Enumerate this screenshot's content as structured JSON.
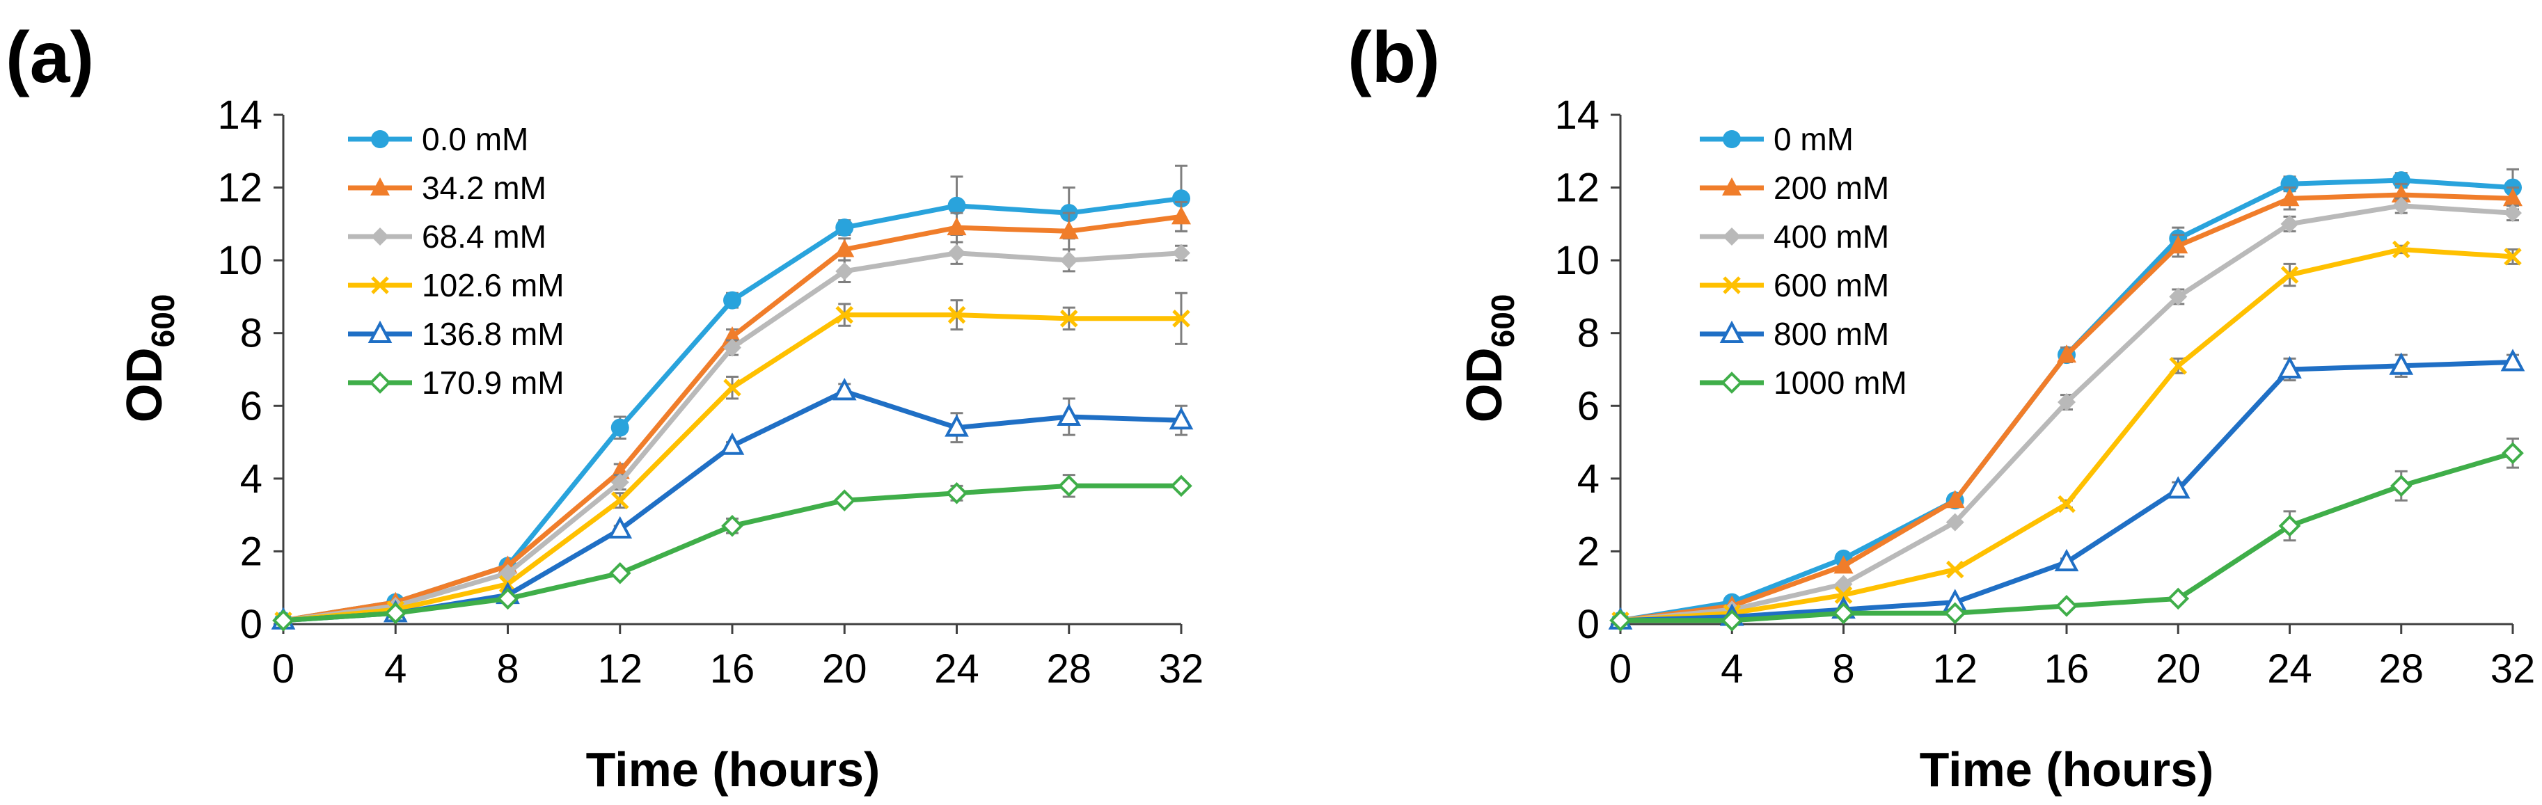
{
  "chart_data": [
    {
      "type": "line",
      "panel_label": "(a)",
      "xlabel": "Time (hours)",
      "ylabel_main": "OD",
      "ylabel_sub": "600",
      "x": [
        0,
        4,
        8,
        12,
        16,
        20,
        24,
        28,
        32
      ],
      "xlim": [
        0,
        32
      ],
      "ylim": [
        0,
        14
      ],
      "xticks": [
        "0",
        "4",
        "8",
        "12",
        "16",
        "20",
        "24",
        "28",
        "32"
      ],
      "yticks": [
        "0",
        "2",
        "4",
        "6",
        "8",
        "10",
        "12",
        "14"
      ],
      "legend_position": "top-left",
      "series": [
        {
          "name": "0.0 mM",
          "color": "#29a3dc",
          "marker": "circle",
          "values": [
            0.1,
            0.6,
            1.6,
            5.4,
            8.9,
            10.9,
            11.5,
            11.3,
            11.7
          ],
          "errors": [
            0,
            0,
            0.1,
            0.3,
            0.2,
            0.2,
            0.8,
            0.7,
            0.9
          ]
        },
        {
          "name": "34.2 mM",
          "color": "#f07d2a",
          "marker": "triangle",
          "values": [
            0.1,
            0.6,
            1.6,
            4.2,
            7.9,
            10.3,
            10.9,
            10.8,
            11.2
          ],
          "errors": [
            0,
            0,
            0,
            0.2,
            0.2,
            0.3,
            0.4,
            0.5,
            0.4
          ]
        },
        {
          "name": "68.4 mM",
          "color": "#b9b9b9",
          "marker": "diamond",
          "values": [
            0.1,
            0.5,
            1.4,
            3.9,
            7.6,
            9.7,
            10.2,
            10.0,
            10.2
          ],
          "errors": [
            0,
            0,
            0,
            0.2,
            0.2,
            0.3,
            0.3,
            0.3,
            0.2
          ]
        },
        {
          "name": "102.6 mM",
          "color": "#ffc000",
          "marker": "x",
          "values": [
            0.1,
            0.4,
            1.1,
            3.4,
            6.5,
            8.5,
            8.5,
            8.4,
            8.4
          ],
          "errors": [
            0,
            0,
            0,
            0.2,
            0.3,
            0.3,
            0.4,
            0.3,
            0.7
          ]
        },
        {
          "name": "136.8 mM",
          "color": "#1f6fc5",
          "marker": "triangle-open",
          "values": [
            0.1,
            0.3,
            0.8,
            2.6,
            4.9,
            6.4,
            5.4,
            5.7,
            5.6
          ],
          "errors": [
            0,
            0,
            0,
            0.1,
            0.1,
            0.2,
            0.4,
            0.5,
            0.4
          ]
        },
        {
          "name": "170.9 mM",
          "color": "#3fae49",
          "marker": "diamond-open",
          "values": [
            0.1,
            0.3,
            0.7,
            1.4,
            2.7,
            3.4,
            3.6,
            3.8,
            3.8
          ],
          "errors": [
            0,
            0,
            0,
            0.1,
            0.2,
            0.1,
            0.2,
            0.3,
            0.1
          ]
        }
      ]
    },
    {
      "type": "line",
      "panel_label": "(b)",
      "xlabel": "Time (hours)",
      "ylabel_main": "OD",
      "ylabel_sub": "600",
      "x": [
        0,
        4,
        8,
        12,
        16,
        20,
        24,
        28,
        32
      ],
      "xlim": [
        0,
        32
      ],
      "ylim": [
        0,
        14
      ],
      "xticks": [
        "0",
        "4",
        "8",
        "12",
        "16",
        "20",
        "24",
        "28",
        "32"
      ],
      "yticks": [
        "0",
        "2",
        "4",
        "6",
        "8",
        "10",
        "12",
        "14"
      ],
      "legend_position": "top-left",
      "series": [
        {
          "name": "0  mM",
          "color": "#29a3dc",
          "marker": "circle",
          "values": [
            0.1,
            0.6,
            1.8,
            3.4,
            7.4,
            10.6,
            12.1,
            12.2,
            12.0
          ],
          "errors": [
            0,
            0,
            0,
            0,
            0.2,
            0.3,
            0.2,
            0.2,
            0.5
          ]
        },
        {
          "name": "200 mM",
          "color": "#f07d2a",
          "marker": "triangle",
          "values": [
            0.1,
            0.5,
            1.6,
            3.4,
            7.4,
            10.4,
            11.7,
            11.8,
            11.7
          ],
          "errors": [
            0,
            0,
            0,
            0,
            0.2,
            0.3,
            0.3,
            0.3,
            0.3
          ]
        },
        {
          "name": "400 mM",
          "color": "#b9b9b9",
          "marker": "diamond",
          "values": [
            0.1,
            0.4,
            1.1,
            2.8,
            6.1,
            9.0,
            11.0,
            11.5,
            11.3
          ],
          "errors": [
            0,
            0,
            0,
            0,
            0.2,
            0.2,
            0.2,
            0.2,
            0.2
          ]
        },
        {
          "name": "600 mM",
          "color": "#ffc000",
          "marker": "x",
          "values": [
            0.1,
            0.3,
            0.8,
            1.5,
            3.3,
            7.1,
            9.6,
            10.3,
            10.1
          ],
          "errors": [
            0,
            0,
            0,
            0,
            0.1,
            0.2,
            0.3,
            0.1,
            0.2
          ]
        },
        {
          "name": "800 mM",
          "color": "#1f6fc5",
          "marker": "triangle-open",
          "values": [
            0.1,
            0.2,
            0.4,
            0.6,
            1.7,
            3.7,
            7.0,
            7.1,
            7.2
          ],
          "errors": [
            0,
            0,
            0,
            0,
            0.1,
            0.2,
            0.3,
            0.3,
            0.2
          ]
        },
        {
          "name": "1000 mM",
          "color": "#3fae49",
          "marker": "diamond-open",
          "values": [
            0.1,
            0.1,
            0.3,
            0.3,
            0.5,
            0.7,
            2.7,
            3.8,
            4.7
          ],
          "errors": [
            0,
            0,
            0,
            0,
            0,
            0.1,
            0.4,
            0.4,
            0.4
          ]
        }
      ]
    }
  ]
}
